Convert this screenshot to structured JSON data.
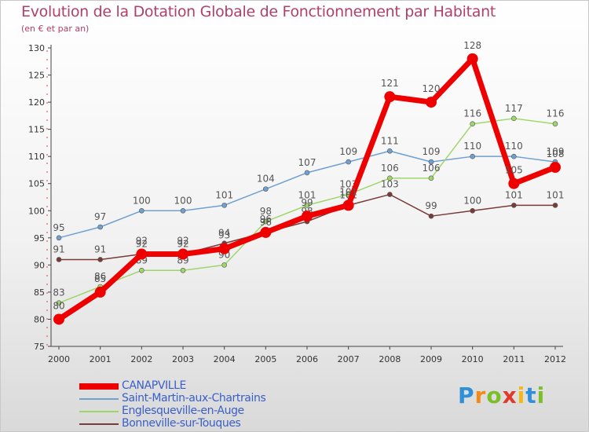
{
  "brand": {
    "text": "Proxiti",
    "letters": [
      "P",
      "r",
      "o",
      "x",
      "i",
      "t",
      "i"
    ]
  },
  "chart_data": {
    "type": "line",
    "title": "Evolution de la Dotation Globale de Fonctionnement par Habitant",
    "subtitle": "(en € et par an)",
    "xlabel": "",
    "ylabel": "",
    "x": [
      "2000",
      "2001",
      "2002",
      "2003",
      "2004",
      "2005",
      "2006",
      "2007",
      "2008",
      "2009",
      "2010",
      "2011",
      "2012"
    ],
    "ylim": [
      75,
      130
    ],
    "yticks": [
      75,
      80,
      85,
      90,
      95,
      100,
      105,
      110,
      115,
      120,
      125,
      130
    ],
    "grid": false,
    "legend_position": "bottom-left",
    "series": [
      {
        "name": "Saint-Martin-aux-Chartrains",
        "color": "#6fa0d0",
        "emphasis": false,
        "values": [
          95,
          97,
          100,
          100,
          101,
          104,
          107,
          109,
          111,
          109,
          110,
          110,
          109
        ]
      },
      {
        "name": "Englesqueville-en-Auge",
        "color": "#9fd66b",
        "emphasis": false,
        "values": [
          83,
          86,
          89,
          89,
          90,
          98,
          101,
          103,
          106,
          106,
          116,
          117,
          116
        ]
      },
      {
        "name": "Bonneville-sur-Touques",
        "color": "#7a3a3a",
        "emphasis": false,
        "values": [
          91,
          91,
          92,
          92,
          94,
          96,
          98,
          101,
          103,
          99,
          100,
          101,
          101
        ]
      },
      {
        "name": "CANAPVILLE",
        "color": "#ee0000",
        "emphasis": true,
        "values": [
          80,
          85,
          92,
          92,
          93,
          96,
          99,
          101,
          121,
          120,
          128,
          105,
          108
        ]
      }
    ],
    "legend_order": [
      "CANAPVILLE",
      "Saint-Martin-aux-Chartrains",
      "Englesqueville-en-Auge",
      "Bonneville-sur-Touques"
    ]
  }
}
